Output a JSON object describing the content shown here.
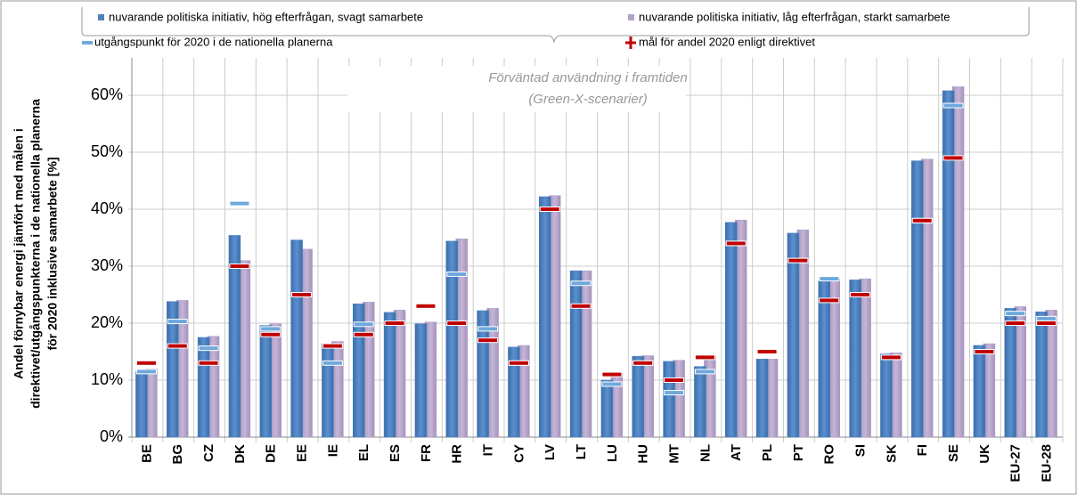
{
  "chart_data": {
    "type": "bar",
    "y_label": [
      "Andel förnybar energi jämfört med målen i",
      "direktivet/utgångspunkterna i de nationella planerna",
      "för 2020 inklusive samarbete  [%]"
    ],
    "annotation": [
      "Förväntad användning i framtiden",
      "(Green-X-scenarier)"
    ],
    "categories": [
      "BE",
      "BG",
      "CZ",
      "DK",
      "DE",
      "EE",
      "IE",
      "EL",
      "ES",
      "FR",
      "HR",
      "IT",
      "CY",
      "LV",
      "LT",
      "LU",
      "HU",
      "MT",
      "NL",
      "AT",
      "PL",
      "PT",
      "RO",
      "SI",
      "SK",
      "FI",
      "SE",
      "UK",
      "EU-27",
      "EU-28"
    ],
    "series": [
      {
        "name": "nuvarande politiska initiativ, hög efterfrågan, svagt samarbete",
        "color": "#4f81bd",
        "values": [
          11.5,
          23.8,
          17.5,
          35.4,
          19.6,
          34.6,
          16.4,
          23.4,
          21.9,
          19.9,
          34.4,
          22.2,
          15.8,
          42.2,
          29.2,
          10.0,
          14.2,
          13.3,
          12.4,
          37.7,
          13.7,
          35.8,
          27.5,
          27.6,
          14.6,
          48.5,
          60.8,
          16.1,
          22.6,
          22.0
        ]
      },
      {
        "name": "nuvarande politiska initiativ, låg efterfrågan, starkt samarbete",
        "color": "#b3a2c7",
        "values": [
          12.0,
          24.0,
          17.7,
          31.0,
          19.9,
          33.0,
          16.8,
          23.7,
          22.3,
          20.2,
          34.8,
          22.6,
          16.1,
          42.4,
          29.2,
          11.2,
          14.3,
          13.5,
          14.3,
          38.1,
          13.7,
          36.4,
          27.8,
          27.8,
          14.8,
          48.8,
          61.5,
          16.4,
          22.9,
          22.3
        ]
      },
      {
        "name": "utgångspunkt för 2020 i de nationella planerna",
        "color": "#6fa8dc",
        "marker": "dash",
        "values": [
          11.5,
          20.3,
          15.6,
          41.0,
          19.0,
          25.0,
          13.0,
          19.8,
          20.0,
          23.0,
          28.6,
          19.0,
          13.0,
          40.0,
          27.0,
          9.3,
          13.0,
          7.8,
          11.5,
          34.0,
          15.0,
          31.0,
          27.8,
          25.0,
          14.0,
          38.0,
          58.2,
          15.0,
          21.7,
          20.8
        ]
      },
      {
        "name": "mål för andel 2020 enligt direktivet",
        "color": "#c00000",
        "marker": "dash",
        "values": [
          13,
          16,
          13,
          30,
          18,
          25,
          16,
          18,
          20,
          23,
          20,
          17,
          13,
          40,
          23,
          11,
          13,
          10,
          14,
          34,
          15,
          31,
          24,
          25,
          14,
          38,
          49,
          15,
          20,
          20
        ]
      }
    ],
    "ylim": [
      0,
      65
    ],
    "yticks": [
      {
        "value": 0,
        "label": "0%"
      },
      {
        "value": 10,
        "label": "10%"
      },
      {
        "value": 20,
        "label": "20%"
      },
      {
        "value": 30,
        "label": "30%"
      },
      {
        "value": 40,
        "label": "40%"
      },
      {
        "value": 50,
        "label": "50%"
      },
      {
        "value": 60,
        "label": "60%"
      }
    ],
    "grid": true
  }
}
